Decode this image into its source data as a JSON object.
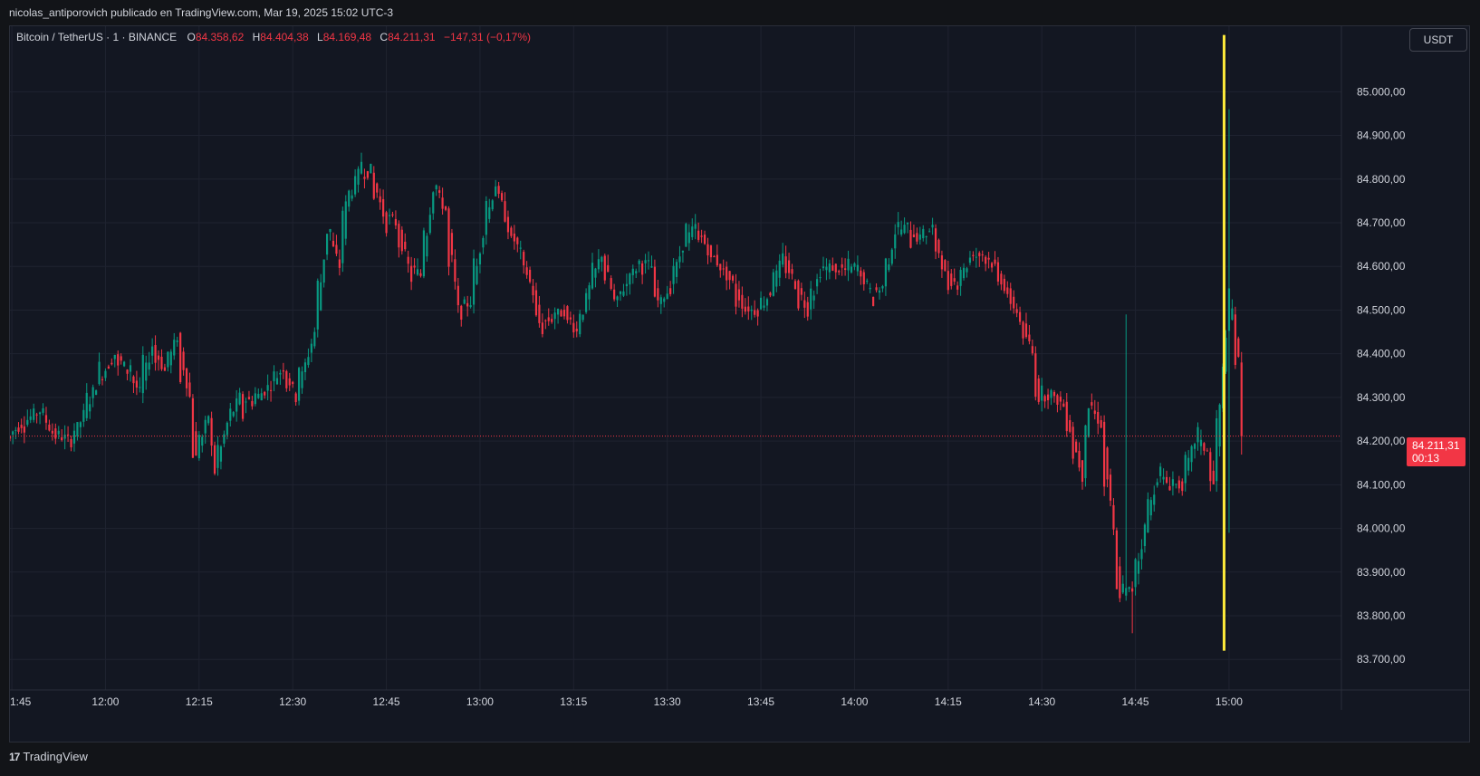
{
  "header": {
    "publish_line": "nicolas_antiporovich publicado en TradingView.com, Mar 19, 2025 15:02 UTC-3"
  },
  "legend": {
    "symbol": "Bitcoin / TetherUS · 1 · BINANCE",
    "o_label": "O",
    "o_value": "84.358,62",
    "h_label": "H",
    "h_value": "84.404,38",
    "l_label": "L",
    "l_value": "84.169,48",
    "c_label": "C",
    "c_value": "84.211,31",
    "change": "−147,31 (−0,17%)"
  },
  "currency_button": "USDT",
  "last_price": {
    "price": "84.211,31",
    "countdown": "00:13",
    "value": 84211.31
  },
  "footer": {
    "brand": "TradingView",
    "logo_icon": "tradingview-logo-icon"
  },
  "colors": {
    "up": "#089981",
    "down": "#f23645",
    "background": "#131722",
    "grid": "#1f2330",
    "highlight": "#ffeb3b"
  },
  "chart_data": {
    "type": "candlestick",
    "ylim": [
      83630,
      85150
    ],
    "y_ticks": [
      {
        "value": 85000,
        "label": "85.000,00"
      },
      {
        "value": 84900,
        "label": "84.900,00"
      },
      {
        "value": 84800,
        "label": "84.800,00"
      },
      {
        "value": 84700,
        "label": "84.700,00"
      },
      {
        "value": 84600,
        "label": "84.600,00"
      },
      {
        "value": 84500,
        "label": "84.500,00"
      },
      {
        "value": 84400,
        "label": "84.400,00"
      },
      {
        "value": 84300,
        "label": "84.300,00"
      },
      {
        "value": 84200,
        "label": "84.200,00"
      },
      {
        "value": 84100,
        "label": "84.100,00"
      },
      {
        "value": 84000,
        "label": "84.000,00"
      },
      {
        "value": 83900,
        "label": "83.900,00"
      },
      {
        "value": 83800,
        "label": "83.800,00"
      },
      {
        "value": 83700,
        "label": "83.700,00"
      }
    ],
    "x_ticks": [
      {
        "minute": -15,
        "label": "1:45"
      },
      {
        "minute": 0,
        "label": "12:00"
      },
      {
        "minute": 15,
        "label": "12:15"
      },
      {
        "minute": 30,
        "label": "12:30"
      },
      {
        "minute": 45,
        "label": "12:45"
      },
      {
        "minute": 60,
        "label": "13:00"
      },
      {
        "minute": 75,
        "label": "13:15"
      },
      {
        "minute": 90,
        "label": "13:30"
      },
      {
        "minute": 105,
        "label": "13:45"
      },
      {
        "minute": 120,
        "label": "14:00"
      },
      {
        "minute": 135,
        "label": "14:15"
      },
      {
        "minute": 150,
        "label": "14:30"
      },
      {
        "minute": 165,
        "label": "14:45"
      },
      {
        "minute": 180,
        "label": "15:00"
      }
    ],
    "x_range_minutes": [
      -15.3,
      198
    ],
    "highlight_line": {
      "minute": 179.2,
      "from": 85130,
      "to": 83720
    },
    "anchor_points": [
      [
        -15.3,
        84210,
        84190
      ],
      [
        -13,
        84240,
        84220
      ],
      [
        -10,
        84270,
        84280
      ],
      [
        -8,
        84220,
        84210
      ],
      [
        -5,
        84200,
        84220
      ],
      [
        -3,
        84260,
        84300
      ],
      [
        -1,
        84330,
        84380
      ],
      [
        2,
        84400,
        84360
      ],
      [
        4,
        84360,
        84410
      ],
      [
        6,
        84310,
        84400
      ],
      [
        8,
        84420,
        84380
      ],
      [
        10,
        84360,
        84400
      ],
      [
        12,
        84440,
        84320
      ],
      [
        14,
        84300,
        84200
      ],
      [
        15,
        84160,
        84220
      ],
      [
        17,
        84260,
        84240
      ],
      [
        18,
        84130,
        84180
      ],
      [
        20,
        84240,
        84260
      ],
      [
        22,
        84300,
        84230
      ],
      [
        24,
        84290,
        84310
      ],
      [
        27,
        84330,
        84350
      ],
      [
        29,
        84370,
        84330
      ],
      [
        31,
        84300,
        84380
      ],
      [
        34,
        84450,
        84540
      ],
      [
        36,
        84680,
        84720
      ],
      [
        38,
        84600,
        84700
      ],
      [
        39,
        84740,
        84760
      ],
      [
        41,
        84810,
        84860
      ],
      [
        43,
        84820,
        84750
      ],
      [
        45,
        84720,
        84680
      ],
      [
        47,
        84700,
        84660
      ],
      [
        49,
        84600,
        84560
      ],
      [
        51,
        84580,
        84680
      ],
      [
        53,
        84780,
        84810
      ],
      [
        55,
        84730,
        84600
      ],
      [
        57,
        84500,
        84480
      ],
      [
        59,
        84520,
        84600
      ],
      [
        61,
        84680,
        84760
      ],
      [
        63,
        84790,
        84770
      ],
      [
        65,
        84690,
        84660
      ],
      [
        67,
        84630,
        84600
      ],
      [
        69,
        84540,
        84500
      ],
      [
        70,
        84470,
        84440
      ],
      [
        72,
        84480,
        84500
      ],
      [
        74,
        84500,
        84470
      ],
      [
        76,
        84450,
        84490
      ],
      [
        78,
        84550,
        84590
      ],
      [
        80,
        84630,
        84580
      ],
      [
        82,
        84520,
        84500
      ],
      [
        84,
        84560,
        84600
      ],
      [
        86,
        84610,
        84590
      ],
      [
        88,
        84600,
        84530
      ],
      [
        89,
        84520,
        84500
      ],
      [
        91,
        84550,
        84600
      ],
      [
        93,
        84650,
        84700
      ],
      [
        95,
        84690,
        84650
      ],
      [
        97,
        84640,
        84610
      ],
      [
        99,
        84600,
        84590
      ],
      [
        101,
        84560,
        84510
      ],
      [
        103,
        84500,
        84510
      ],
      [
        105,
        84500,
        84520
      ],
      [
        107,
        84540,
        84600
      ],
      [
        109,
        84620,
        84600
      ],
      [
        111,
        84560,
        84510
      ],
      [
        113,
        84500,
        84560
      ],
      [
        115,
        84590,
        84600
      ],
      [
        117,
        84600,
        84570
      ],
      [
        119,
        84590,
        84610
      ],
      [
        121,
        84600,
        84570
      ],
      [
        123,
        84540,
        84500
      ],
      [
        125,
        84550,
        84630
      ],
      [
        127,
        84680,
        84700
      ],
      [
        129,
        84690,
        84640
      ],
      [
        131,
        84660,
        84700
      ],
      [
        133,
        84690,
        84620
      ],
      [
        135,
        84580,
        84540
      ],
      [
        137,
        84560,
        84600
      ],
      [
        139,
        84620,
        84640
      ],
      [
        141,
        84630,
        84610
      ],
      [
        143,
        84600,
        84560
      ],
      [
        145,
        84540,
        84500
      ],
      [
        147,
        84480,
        84420
      ],
      [
        149,
        84400,
        84340
      ],
      [
        150,
        84300,
        84320
      ],
      [
        152,
        84310,
        84290
      ],
      [
        154,
        84280,
        84250
      ],
      [
        155,
        84230,
        84170
      ],
      [
        157,
        84120,
        84200
      ],
      [
        158,
        84280,
        84300
      ],
      [
        160,
        84240,
        84100
      ],
      [
        162,
        83990,
        83880
      ],
      [
        163,
        83850,
        83870
      ],
      [
        165,
        83860,
        83930
      ],
      [
        167,
        84000,
        84060
      ],
      [
        169,
        84120,
        84150
      ],
      [
        171,
        84100,
        84120
      ],
      [
        173,
        84100,
        84150
      ],
      [
        175,
        84200,
        84250
      ],
      [
        177,
        84180,
        84120
      ],
      [
        178,
        84100,
        84200
      ],
      [
        180,
        84450,
        84550
      ],
      [
        181,
        84500,
        84400
      ],
      [
        182,
        84380,
        84211
      ]
    ]
  }
}
